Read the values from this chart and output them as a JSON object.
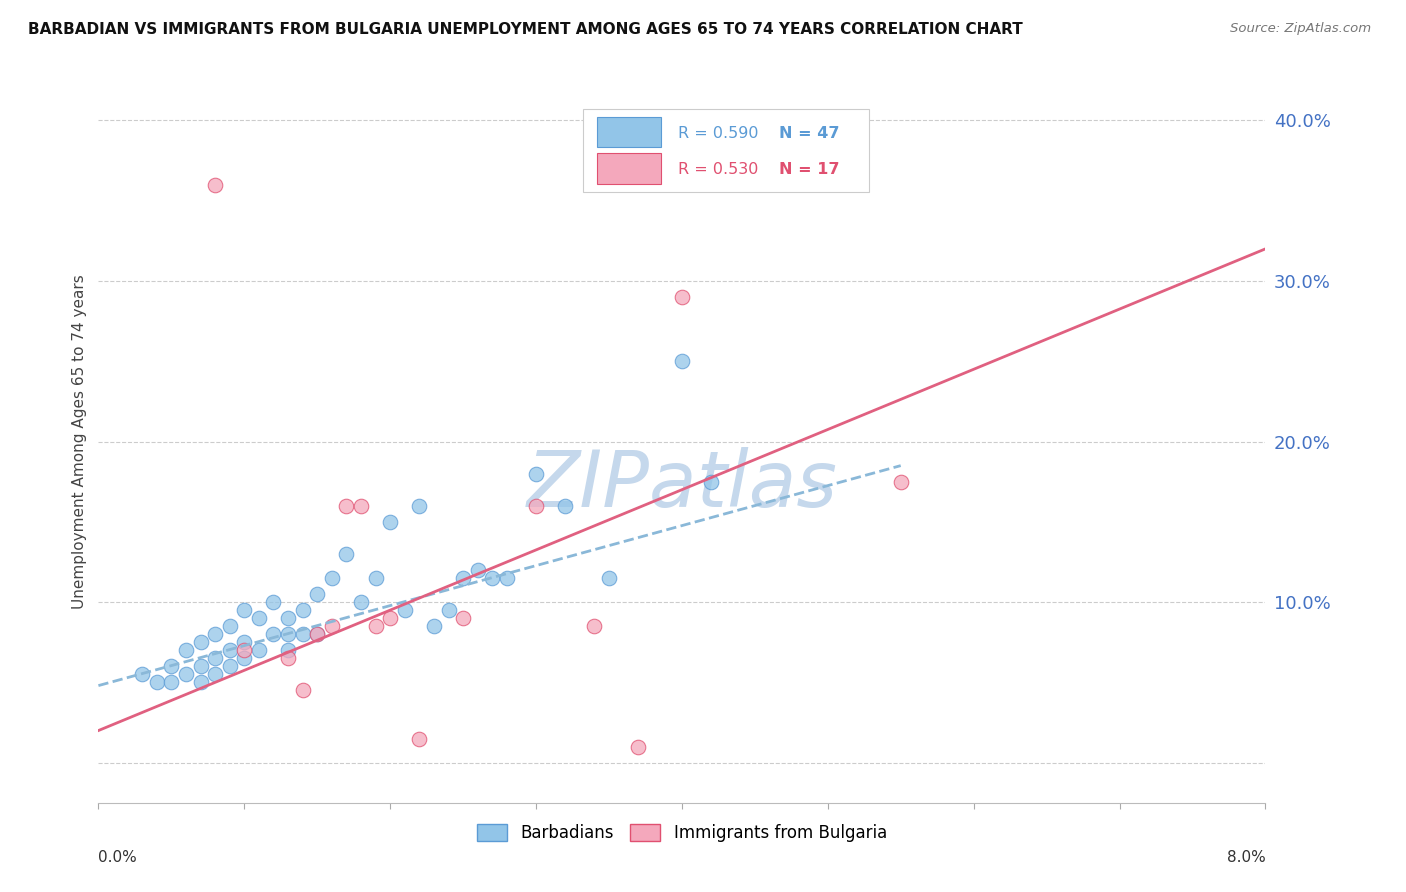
{
  "title": "BARBADIAN VS IMMIGRANTS FROM BULGARIA UNEMPLOYMENT AMONG AGES 65 TO 74 YEARS CORRELATION CHART",
  "source": "Source: ZipAtlas.com",
  "ylabel": "Unemployment Among Ages 65 to 74 years",
  "xmin": 0.0,
  "xmax": 0.08,
  "ymin": -0.025,
  "ymax": 0.425,
  "yticks": [
    0.0,
    0.1,
    0.2,
    0.3,
    0.4
  ],
  "ytick_labels": [
    "",
    "10.0%",
    "20.0%",
    "30.0%",
    "40.0%"
  ],
  "xtick_positions": [
    0.0,
    0.01,
    0.02,
    0.03,
    0.04,
    0.05,
    0.06,
    0.07,
    0.08
  ],
  "barbadian_color": "#92C5E8",
  "barbadian_edge": "#5B9BD5",
  "bulgaria_color": "#F4A8BC",
  "bulgaria_edge": "#E05070",
  "trendline_blue_color": "#8AB8D8",
  "trendline_pink_color": "#E06080",
  "watermark_color": "#C5D8EC",
  "background_color": "#FFFFFF",
  "grid_color": "#CCCCCC",
  "right_axis_color": "#4472C4",
  "blue_scatter_x": [
    0.003,
    0.004,
    0.005,
    0.005,
    0.006,
    0.006,
    0.007,
    0.007,
    0.007,
    0.008,
    0.008,
    0.008,
    0.009,
    0.009,
    0.009,
    0.01,
    0.01,
    0.01,
    0.011,
    0.011,
    0.012,
    0.012,
    0.013,
    0.013,
    0.013,
    0.014,
    0.014,
    0.015,
    0.015,
    0.016,
    0.017,
    0.018,
    0.019,
    0.02,
    0.021,
    0.022,
    0.023,
    0.024,
    0.025,
    0.026,
    0.027,
    0.028,
    0.03,
    0.032,
    0.035,
    0.04,
    0.042
  ],
  "blue_scatter_y": [
    0.055,
    0.05,
    0.06,
    0.05,
    0.07,
    0.055,
    0.075,
    0.06,
    0.05,
    0.08,
    0.065,
    0.055,
    0.085,
    0.07,
    0.06,
    0.095,
    0.075,
    0.065,
    0.09,
    0.07,
    0.1,
    0.08,
    0.09,
    0.08,
    0.07,
    0.095,
    0.08,
    0.105,
    0.08,
    0.115,
    0.13,
    0.1,
    0.115,
    0.15,
    0.095,
    0.16,
    0.085,
    0.095,
    0.115,
    0.12,
    0.115,
    0.115,
    0.18,
    0.16,
    0.115,
    0.25,
    0.175
  ],
  "pink_scatter_x": [
    0.008,
    0.01,
    0.013,
    0.014,
    0.015,
    0.016,
    0.017,
    0.018,
    0.019,
    0.02,
    0.022,
    0.025,
    0.03,
    0.034,
    0.037,
    0.04,
    0.055
  ],
  "pink_scatter_y": [
    0.36,
    0.07,
    0.065,
    0.045,
    0.08,
    0.085,
    0.16,
    0.16,
    0.085,
    0.09,
    0.015,
    0.09,
    0.16,
    0.085,
    0.01,
    0.29,
    0.175
  ],
  "blue_trend_x0": 0.0,
  "blue_trend_x1": 0.055,
  "blue_trend_y0": 0.048,
  "blue_trend_y1": 0.185,
  "pink_trend_x0": 0.0,
  "pink_trend_x1": 0.08,
  "pink_trend_y0": 0.02,
  "pink_trend_y1": 0.32,
  "legend_R1": "R = 0.590",
  "legend_N1": "N = 47",
  "legend_R2": "R = 0.530",
  "legend_N2": "N = 17"
}
